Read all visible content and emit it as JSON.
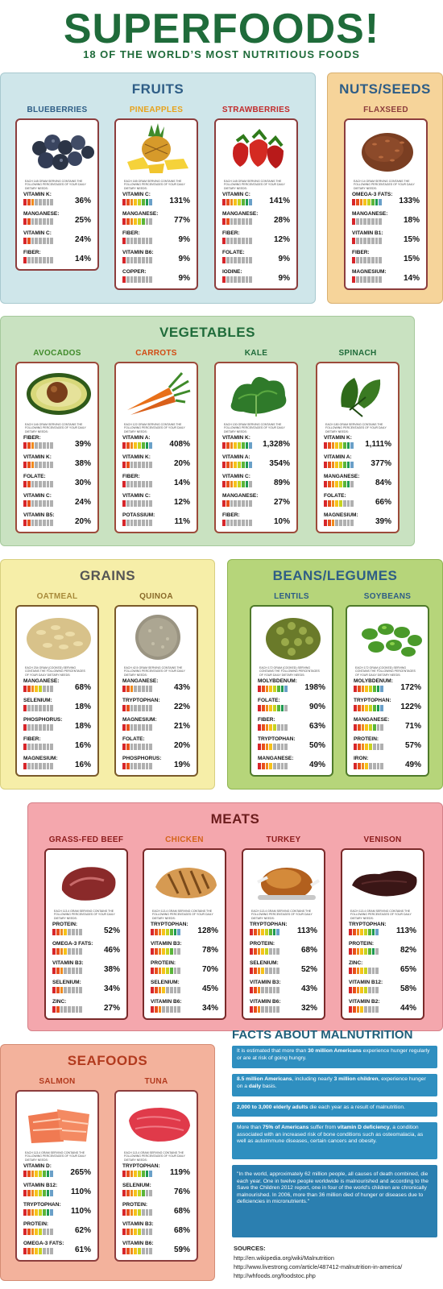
{
  "header": {
    "title": "SUPERFOODS!",
    "subtitle": "18 OF THE WORLD’S MOST NUTRITIOUS FOODS"
  },
  "sections": [
    {
      "id": "fruits",
      "title": "FRUITS",
      "foods": [
        {
          "name": "BLUEBERRIES",
          "intro": "EACH 148 GRAM SERVING CONTAINS THE FOLLOWING PERCENTAGES OF YOUR DAILY DIETARY NEEDS:",
          "nutrients": [
            {
              "label": "VITAMIN K:",
              "pct": "36%",
              "level": 0.36
            },
            {
              "label": "MANGANESE:",
              "pct": "25%",
              "level": 0.25
            },
            {
              "label": "VITAMIN C:",
              "pct": "24%",
              "level": 0.24
            },
            {
              "label": "FIBER:",
              "pct": "14%",
              "level": 0.14
            }
          ]
        },
        {
          "name": "PINEAPPLES",
          "intro": "EACH 165 GRAM SERVING CONTAINS THE FOLLOWING PERCENTAGES OF YOUR DAILY DIETARY NEEDS:",
          "nutrients": [
            {
              "label": "VITAMIN C:",
              "pct": "131%",
              "level": 1
            },
            {
              "label": "MANGANESE:",
              "pct": "77%",
              "level": 0.77
            },
            {
              "label": "FIBER:",
              "pct": "9%",
              "level": 0.09
            },
            {
              "label": "VITAMIN B6:",
              "pct": "9%",
              "level": 0.09
            },
            {
              "label": "COPPER:",
              "pct": "9%",
              "level": 0.09
            }
          ]
        },
        {
          "name": "STRAWBERRIES",
          "intro": "EACH 148 GRAM SERVING CONTAINS THE FOLLOWING PERCENTAGES OF YOUR DAILY DIETARY NEEDS:",
          "nutrients": [
            {
              "label": "VITAMIN C:",
              "pct": "141%",
              "level": 1
            },
            {
              "label": "MANGANESE:",
              "pct": "28%",
              "level": 0.28
            },
            {
              "label": "FIBER:",
              "pct": "12%",
              "level": 0.12
            },
            {
              "label": "FOLATE:",
              "pct": "9%",
              "level": 0.09
            },
            {
              "label": "IODINE:",
              "pct": "9%",
              "level": 0.09
            }
          ]
        }
      ]
    },
    {
      "id": "nuts",
      "title": "NUTS/SEEDS",
      "foods": [
        {
          "name": "FLAXSEED",
          "intro": "EACH 14 GRAM SERVING CONTAINS THE FOLLOWING PERCENTAGES OF YOUR DAILY DIETARY NEEDS:",
          "nutrients": [
            {
              "label": "OMEGA-3 FATS:",
              "pct": "133%",
              "level": 1
            },
            {
              "label": "MANGANESE:",
              "pct": "18%",
              "level": 0.18
            },
            {
              "label": "VITAMIN B1:",
              "pct": "15%",
              "level": 0.15
            },
            {
              "label": "FIBER:",
              "pct": "15%",
              "level": 0.15
            },
            {
              "label": "MAGNESIUM:",
              "pct": "14%",
              "level": 0.14
            }
          ]
        }
      ]
    },
    {
      "id": "vegetables",
      "title": "VEGETABLES",
      "foods": [
        {
          "name": "AVOCADOS",
          "intro": "EACH 146 GRAM SERVING CONTAINS THE FOLLOWING PERCENTAGES OF YOUR DAILY DIETARY NEEDS:",
          "nutrients": [
            {
              "label": "FIBER:",
              "pct": "39%",
              "level": 0.39
            },
            {
              "label": "VITAMIN K:",
              "pct": "38%",
              "level": 0.38
            },
            {
              "label": "FOLATE:",
              "pct": "30%",
              "level": 0.3
            },
            {
              "label": "VITAMIN C:",
              "pct": "24%",
              "level": 0.24
            },
            {
              "label": "VITAMIN B5:",
              "pct": "20%",
              "level": 0.2
            }
          ]
        },
        {
          "name": "CARROTS",
          "intro": "EACH 122 GRAM SERVING CONTAINS THE FOLLOWING PERCENTAGES OF YOUR DAILY DIETARY NEEDS:",
          "nutrients": [
            {
              "label": "VITAMIN A:",
              "pct": "408%",
              "level": 1
            },
            {
              "label": "VITAMIN K:",
              "pct": "20%",
              "level": 0.2
            },
            {
              "label": "FIBER:",
              "pct": "14%",
              "level": 0.14
            },
            {
              "label": "VITAMIN C:",
              "pct": "12%",
              "level": 0.12
            },
            {
              "label": "POTASSIUM:",
              "pct": "11%",
              "level": 0.11
            }
          ]
        },
        {
          "name": "KALE",
          "intro": "EACH 130 GRAM SERVING CONTAINS THE FOLLOWING PERCENTAGES OF YOUR DAILY DIETARY NEEDS:",
          "nutrients": [
            {
              "label": "VITAMIN K:",
              "pct": "1,328%",
              "level": 1
            },
            {
              "label": "VITAMIN A:",
              "pct": "354%",
              "level": 1
            },
            {
              "label": "VITAMIN C:",
              "pct": "89%",
              "level": 0.89
            },
            {
              "label": "MANGANESE:",
              "pct": "27%",
              "level": 0.27
            },
            {
              "label": "FIBER:",
              "pct": "10%",
              "level": 0.1
            }
          ]
        },
        {
          "name": "SPINACH",
          "intro": "EACH 180 GRAM SERVING CONTAINS THE FOLLOWING PERCENTAGES OF YOUR DAILY DIETARY NEEDS:",
          "nutrients": [
            {
              "label": "VITAMIN K:",
              "pct": "1,111%",
              "level": 1
            },
            {
              "label": "VITAMIN A:",
              "pct": "377%",
              "level": 1
            },
            {
              "label": "MANGANESE:",
              "pct": "84%",
              "level": 0.84
            },
            {
              "label": "FOLATE:",
              "pct": "66%",
              "level": 0.66
            },
            {
              "label": "MAGNESIUM:",
              "pct": "39%",
              "level": 0.39
            }
          ]
        }
      ]
    },
    {
      "id": "grains",
      "title": "GRAINS",
      "foods": [
        {
          "name": "OATMEAL",
          "intro": "EACH 234 GRAM (COOKED) SERVING CONTAINS THE FOLLOWING PERCENTAGES OF YOUR DAILY DIETARY NEEDS:",
          "nutrients": [
            {
              "label": "MANGANESE:",
              "pct": "68%",
              "level": 0.68
            },
            {
              "label": "SELENIUM:",
              "pct": "18%",
              "level": 0.18
            },
            {
              "label": "PHOSPHORUS:",
              "pct": "18%",
              "level": 0.18
            },
            {
              "label": "FIBER:",
              "pct": "16%",
              "level": 0.16
            },
            {
              "label": "MAGNESIUM:",
              "pct": "16%",
              "level": 0.16
            }
          ]
        },
        {
          "name": "QUINOA",
          "intro": "EACH 42.5 GRAM SERVING CONTAINS THE FOLLOWING PERCENTAGES OF YOUR DAILY DIETARY NEEDS:",
          "nutrients": [
            {
              "label": "MANGANESE:",
              "pct": "43%",
              "level": 0.43
            },
            {
              "label": "TRYPTOPHAN:",
              "pct": "22%",
              "level": 0.22
            },
            {
              "label": "MAGNESIUM:",
              "pct": "21%",
              "level": 0.21
            },
            {
              "label": "FOLATE:",
              "pct": "20%",
              "level": 0.2
            },
            {
              "label": "PHOSPHORUS:",
              "pct": "19%",
              "level": 0.19
            }
          ]
        }
      ]
    },
    {
      "id": "beans",
      "title": "BEANS/LEGUMES",
      "foods": [
        {
          "name": "LENTILS",
          "intro": "EACH 172 GRAM (COOKED) SERVING CONTAINS THE FOLLOWING PERCENTAGES OF YOUR DAILY DIETARY NEEDS:",
          "nutrients": [
            {
              "label": "MOLYBDENUM:",
              "pct": "198%",
              "level": 1
            },
            {
              "label": "FOLATE:",
              "pct": "90%",
              "level": 0.9
            },
            {
              "label": "FIBER:",
              "pct": "63%",
              "level": 0.63
            },
            {
              "label": "TRYPTOPHAN:",
              "pct": "50%",
              "level": 0.5
            },
            {
              "label": "MANGANESE:",
              "pct": "49%",
              "level": 0.49
            }
          ]
        },
        {
          "name": "SOYBEANS",
          "intro": "EACH 172 GRAM (COOKED) SERVING CONTAINS THE FOLLOWING PERCENTAGES OF YOUR DAILY DIETARY NEEDS:",
          "nutrients": [
            {
              "label": "MOLYBDENUM:",
              "pct": "172%",
              "level": 1
            },
            {
              "label": "TRYPTOPHAN:",
              "pct": "122%",
              "level": 1
            },
            {
              "label": "MANGANESE:",
              "pct": "71%",
              "level": 0.71
            },
            {
              "label": "PROTEIN:",
              "pct": "57%",
              "level": 0.57
            },
            {
              "label": "IRON:",
              "pct": "49%",
              "level": 0.49
            }
          ]
        }
      ]
    },
    {
      "id": "meats",
      "title": "MEATS",
      "foods": [
        {
          "name": "GRASS-FED BEEF",
          "intro": "EACH 113.4 GRAM SERVING CONTAINS THE FOLLOWING PERCENTAGES OF YOUR DAILY DIETARY NEEDS:",
          "nutrients": [
            {
              "label": "PROTEIN:",
              "pct": "52%",
              "level": 0.52
            },
            {
              "label": "OMEGA-3 FATS:",
              "pct": "46%",
              "level": 0.46
            },
            {
              "label": "VITAMIN B3:",
              "pct": "38%",
              "level": 0.38
            },
            {
              "label": "SELENIUM:",
              "pct": "34%",
              "level": 0.34
            },
            {
              "label": "ZINC:",
              "pct": "27%",
              "level": 0.27
            }
          ]
        },
        {
          "name": "CHICKEN",
          "intro": "EACH 113.4 GRAM SERVING CONTAINS THE FOLLOWING PERCENTAGES OF YOUR DAILY DIETARY NEEDS:",
          "nutrients": [
            {
              "label": "TRYPTOPHAN:",
              "pct": "128%",
              "level": 1
            },
            {
              "label": "VITAMIN B3:",
              "pct": "78%",
              "level": 0.78
            },
            {
              "label": "PROTEIN:",
              "pct": "70%",
              "level": 0.7
            },
            {
              "label": "SELENIUM:",
              "pct": "45%",
              "level": 0.45
            },
            {
              "label": "VITAMIN B6:",
              "pct": "34%",
              "level": 0.34
            }
          ]
        },
        {
          "name": "TURKEY",
          "intro": "EACH 113.4 GRAM SERVING CONTAINS THE FOLLOWING PERCENTAGES OF YOUR DAILY DIETARY NEEDS:",
          "nutrients": [
            {
              "label": "TRYPTOPHAN:",
              "pct": "113%",
              "level": 1
            },
            {
              "label": "PROTEIN:",
              "pct": "68%",
              "level": 0.68
            },
            {
              "label": "SELENIUM:",
              "pct": "52%",
              "level": 0.52
            },
            {
              "label": "VITAMIN B3:",
              "pct": "43%",
              "level": 0.43
            },
            {
              "label": "VITAMIN B6:",
              "pct": "32%",
              "level": 0.32
            }
          ]
        },
        {
          "name": "VENISON",
          "intro": "EACH 113.4 GRAM SERVING CONTAINS THE FOLLOWING PERCENTAGES OF YOUR DAILY DIETARY NEEDS:",
          "nutrients": [
            {
              "label": "TRYPTOPHAN:",
              "pct": "113%",
              "level": 1
            },
            {
              "label": "PROTEIN:",
              "pct": "82%",
              "level": 0.82
            },
            {
              "label": "ZINC:",
              "pct": "65%",
              "level": 0.65
            },
            {
              "label": "VITAMIN B12:",
              "pct": "58%",
              "level": 0.58
            },
            {
              "label": "VITAMIN B2:",
              "pct": "44%",
              "level": 0.44
            }
          ]
        }
      ]
    },
    {
      "id": "seafoods",
      "title": "SEAFOODS",
      "foods": [
        {
          "name": "SALMON",
          "intro": "EACH 113.4 GRAM SERVING CONTAINS THE FOLLOWING PERCENTAGES OF YOUR DAILY DIETARY NEEDS:",
          "nutrients": [
            {
              "label": "VITAMIN D:",
              "pct": "265%",
              "level": 1
            },
            {
              "label": "VITAMIN B12:",
              "pct": "110%",
              "level": 1
            },
            {
              "label": "TRYPTOPHAN:",
              "pct": "110%",
              "level": 1
            },
            {
              "label": "PROTEIN:",
              "pct": "62%",
              "level": 0.62
            },
            {
              "label": "OMEGA-3 FATS:",
              "pct": "61%",
              "level": 0.61
            }
          ]
        },
        {
          "name": "TUNA",
          "intro": "EACH 113.4 GRAM SERVING CONTAINS THE FOLLOWING PERCENTAGES OF YOUR DAILY DIETARY NEEDS:",
          "nutrients": [
            {
              "label": "TRYPTOPHAN:",
              "pct": "119%",
              "level": 1
            },
            {
              "label": "SELENIUM:",
              "pct": "76%",
              "level": 0.76
            },
            {
              "label": "PROTEIN:",
              "pct": "68%",
              "level": 0.68
            },
            {
              "label": "VITAMIN B3:",
              "pct": "68%",
              "level": 0.68
            },
            {
              "label": "VITAMIN B6:",
              "pct": "59%",
              "level": 0.59
            }
          ]
        }
      ]
    }
  ],
  "facts": {
    "title": "FACTS ABOUT MALNUTRITION",
    "items": [
      {
        "a": "It is estimated that more than ",
        "b": "30 million Americans",
        "c": " experience hunger regularly or are at risk of going hungry."
      },
      {
        "a": "",
        "b": "8.5 million Americans",
        "c": ", including nearly ",
        "d": "3 million children",
        "e": ", experience hunger on a ",
        "f": "daily",
        "g": " basis."
      },
      {
        "a": "",
        "b": "2,000 to 3,000 elderly adults",
        "c": " die each year as a result of malnutrition."
      },
      {
        "a": "More than ",
        "b": "75% of Americans",
        "c": " suffer from ",
        "d": "vitamin D deficiency",
        "e": ", a condition associated with an increased risk of bone conditions such as osteomalacia, as well as autoimmune diseases, certain cancers and obesity."
      },
      {
        "a": "\"In the world, approximately 62 million people, all causes of death combined, die each year. One in twelve people worldwide is malnourished and according to the Save the Children 2012 report, one in four of the world's children are chronically malnourished. In 2006, more than 36 million died of hunger or diseases due to deficiencies in micronutrients.\"",
        "b": "",
        "c": ""
      }
    ]
  },
  "sources": {
    "title": "SOURCES:",
    "links": [
      "http://en.wikipedia.org/wiki/Malnutrition",
      "http://www.livestrong.com/article/487412-malnutrition-in-america/",
      "http://whfoods.org/foodstoc.php"
    ]
  },
  "colors": {
    "brand_green": "#1f6b3a",
    "facts_blue": "#2f8fc0"
  }
}
